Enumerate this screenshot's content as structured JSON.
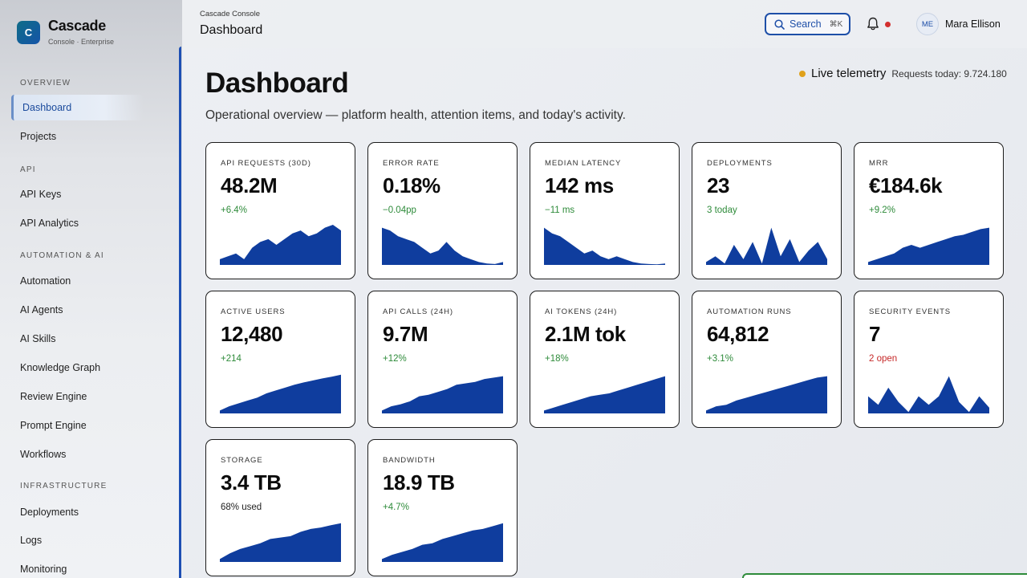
{
  "brand": {
    "name": "Cascade",
    "subtitle": "Console · Enterprise",
    "logo_letter": "C"
  },
  "sidebar": {
    "sections": [
      {
        "title": "OVERVIEW",
        "items": [
          {
            "label": "Dashboard",
            "active": true
          },
          {
            "label": "Projects"
          }
        ]
      },
      {
        "title": "API",
        "items": [
          {
            "label": "API Keys"
          },
          {
            "label": "API Analytics"
          }
        ]
      },
      {
        "title": "AUTOMATION & AI",
        "items": [
          {
            "label": "Automation"
          },
          {
            "label": "AI Agents"
          },
          {
            "label": "AI Skills"
          },
          {
            "label": "Knowledge Graph"
          },
          {
            "label": "Review Engine"
          },
          {
            "label": "Prompt Engine"
          },
          {
            "label": "Workflows"
          }
        ]
      },
      {
        "title": "INFRASTRUCTURE",
        "items": [
          {
            "label": "Deployments"
          },
          {
            "label": "Logs"
          },
          {
            "label": "Monitoring"
          }
        ]
      }
    ]
  },
  "topbar": {
    "breadcrumb": "Cascade Console",
    "title": "Dashboard",
    "search_label": "Search",
    "search_shortcut": "⌘K",
    "user_initials": "ME",
    "user_name": "Mara Ellison"
  },
  "main": {
    "title": "Dashboard",
    "subtitle": "Operational overview — platform health, attention items, and today's activity.",
    "live_label": "Live telemetry",
    "requests_today": "Requests today: 9.724.180"
  },
  "colors": {
    "accent": "#1d4fb3",
    "spark": "#0f3d9e",
    "positive": "#2e8b3a",
    "negative": "#c62828",
    "live": "#e0a11b"
  },
  "cards": [
    {
      "label": "API REQUESTS (30D)",
      "value": "48.2M",
      "delta": "+6.4%",
      "tone": "pos",
      "trend": [
        2,
        3,
        4,
        2,
        6,
        8,
        9,
        7,
        9,
        11,
        12,
        10,
        11,
        13,
        14,
        12
      ]
    },
    {
      "label": "ERROR RATE",
      "value": "0.18%",
      "delta": "−0.04pp",
      "tone": "pos",
      "trend": [
        13,
        12,
        10,
        9,
        8,
        6,
        4,
        5,
        8,
        5,
        3,
        2,
        1,
        0.5,
        0.3,
        1
      ]
    },
    {
      "label": "MEDIAN LATENCY",
      "value": "142 ms",
      "delta": "−11 ms",
      "tone": "pos",
      "trend": [
        13,
        11,
        10,
        8,
        6,
        4,
        5,
        3,
        2,
        3,
        2,
        1,
        0.5,
        0.3,
        0.2,
        0.5
      ]
    },
    {
      "label": "DEPLOYMENTS",
      "value": "23",
      "delta": "3 today",
      "tone": "pos",
      "trend": [
        1,
        3,
        0.5,
        7,
        2,
        8,
        0.5,
        13,
        3,
        9,
        1,
        5,
        8,
        2
      ]
    },
    {
      "label": "MRR",
      "value": "€184.6k",
      "delta": "+9.2%",
      "tone": "pos",
      "trend": [
        1,
        2,
        3,
        4,
        6,
        7,
        6,
        7,
        8,
        9,
        10,
        10.5,
        11.5,
        12.5,
        13
      ]
    },
    {
      "label": "ACTIVE USERS",
      "value": "12,480",
      "delta": "+214",
      "tone": "pos",
      "trend": [
        1,
        2.5,
        3.5,
        4.5,
        5.5,
        7,
        8,
        9,
        10,
        10.8,
        11.5,
        12.2,
        12.8,
        13.5
      ]
    },
    {
      "label": "API CALLS (24H)",
      "value": "9.7M",
      "delta": "+12%",
      "tone": "pos",
      "trend": [
        1,
        2.5,
        3.2,
        4.2,
        6,
        6.5,
        7.5,
        8.5,
        10,
        10.5,
        11,
        12,
        12.5,
        13
      ]
    },
    {
      "label": "AI TOKENS (24H)",
      "value": "2.1M tok",
      "delta": "+18%",
      "tone": "pos",
      "trend": [
        1,
        2,
        3,
        4,
        5,
        6,
        6.5,
        7,
        8,
        9,
        10,
        11,
        12,
        13
      ]
    },
    {
      "label": "AUTOMATION RUNS",
      "value": "64,812",
      "delta": "+3.1%",
      "tone": "pos",
      "trend": [
        1,
        2.5,
        3,
        4.5,
        5.5,
        6.5,
        7.5,
        8.5,
        9.5,
        10.5,
        11.5,
        12.5,
        13
      ]
    },
    {
      "label": "SECURITY EVENTS",
      "value": "7",
      "delta": "2 open",
      "tone": "neg",
      "trend": [
        6,
        3,
        9,
        4,
        0.5,
        6,
        3,
        6,
        13,
        4,
        0.5,
        6,
        2
      ]
    },
    {
      "label": "STORAGE",
      "value": "3.4 TB",
      "delta": "68% used",
      "tone": "neutral",
      "trend": [
        1,
        3,
        4.5,
        5.5,
        6.5,
        8,
        8.5,
        9,
        10.5,
        11.5,
        12,
        12.8,
        13.5
      ]
    },
    {
      "label": "BANDWIDTH",
      "value": "18.9 TB",
      "delta": "+4.7%",
      "tone": "pos",
      "trend": [
        1,
        2.5,
        3.5,
        4.5,
        6,
        6.5,
        8,
        9,
        10,
        11,
        11.5,
        12.5,
        13.5
      ]
    }
  ]
}
